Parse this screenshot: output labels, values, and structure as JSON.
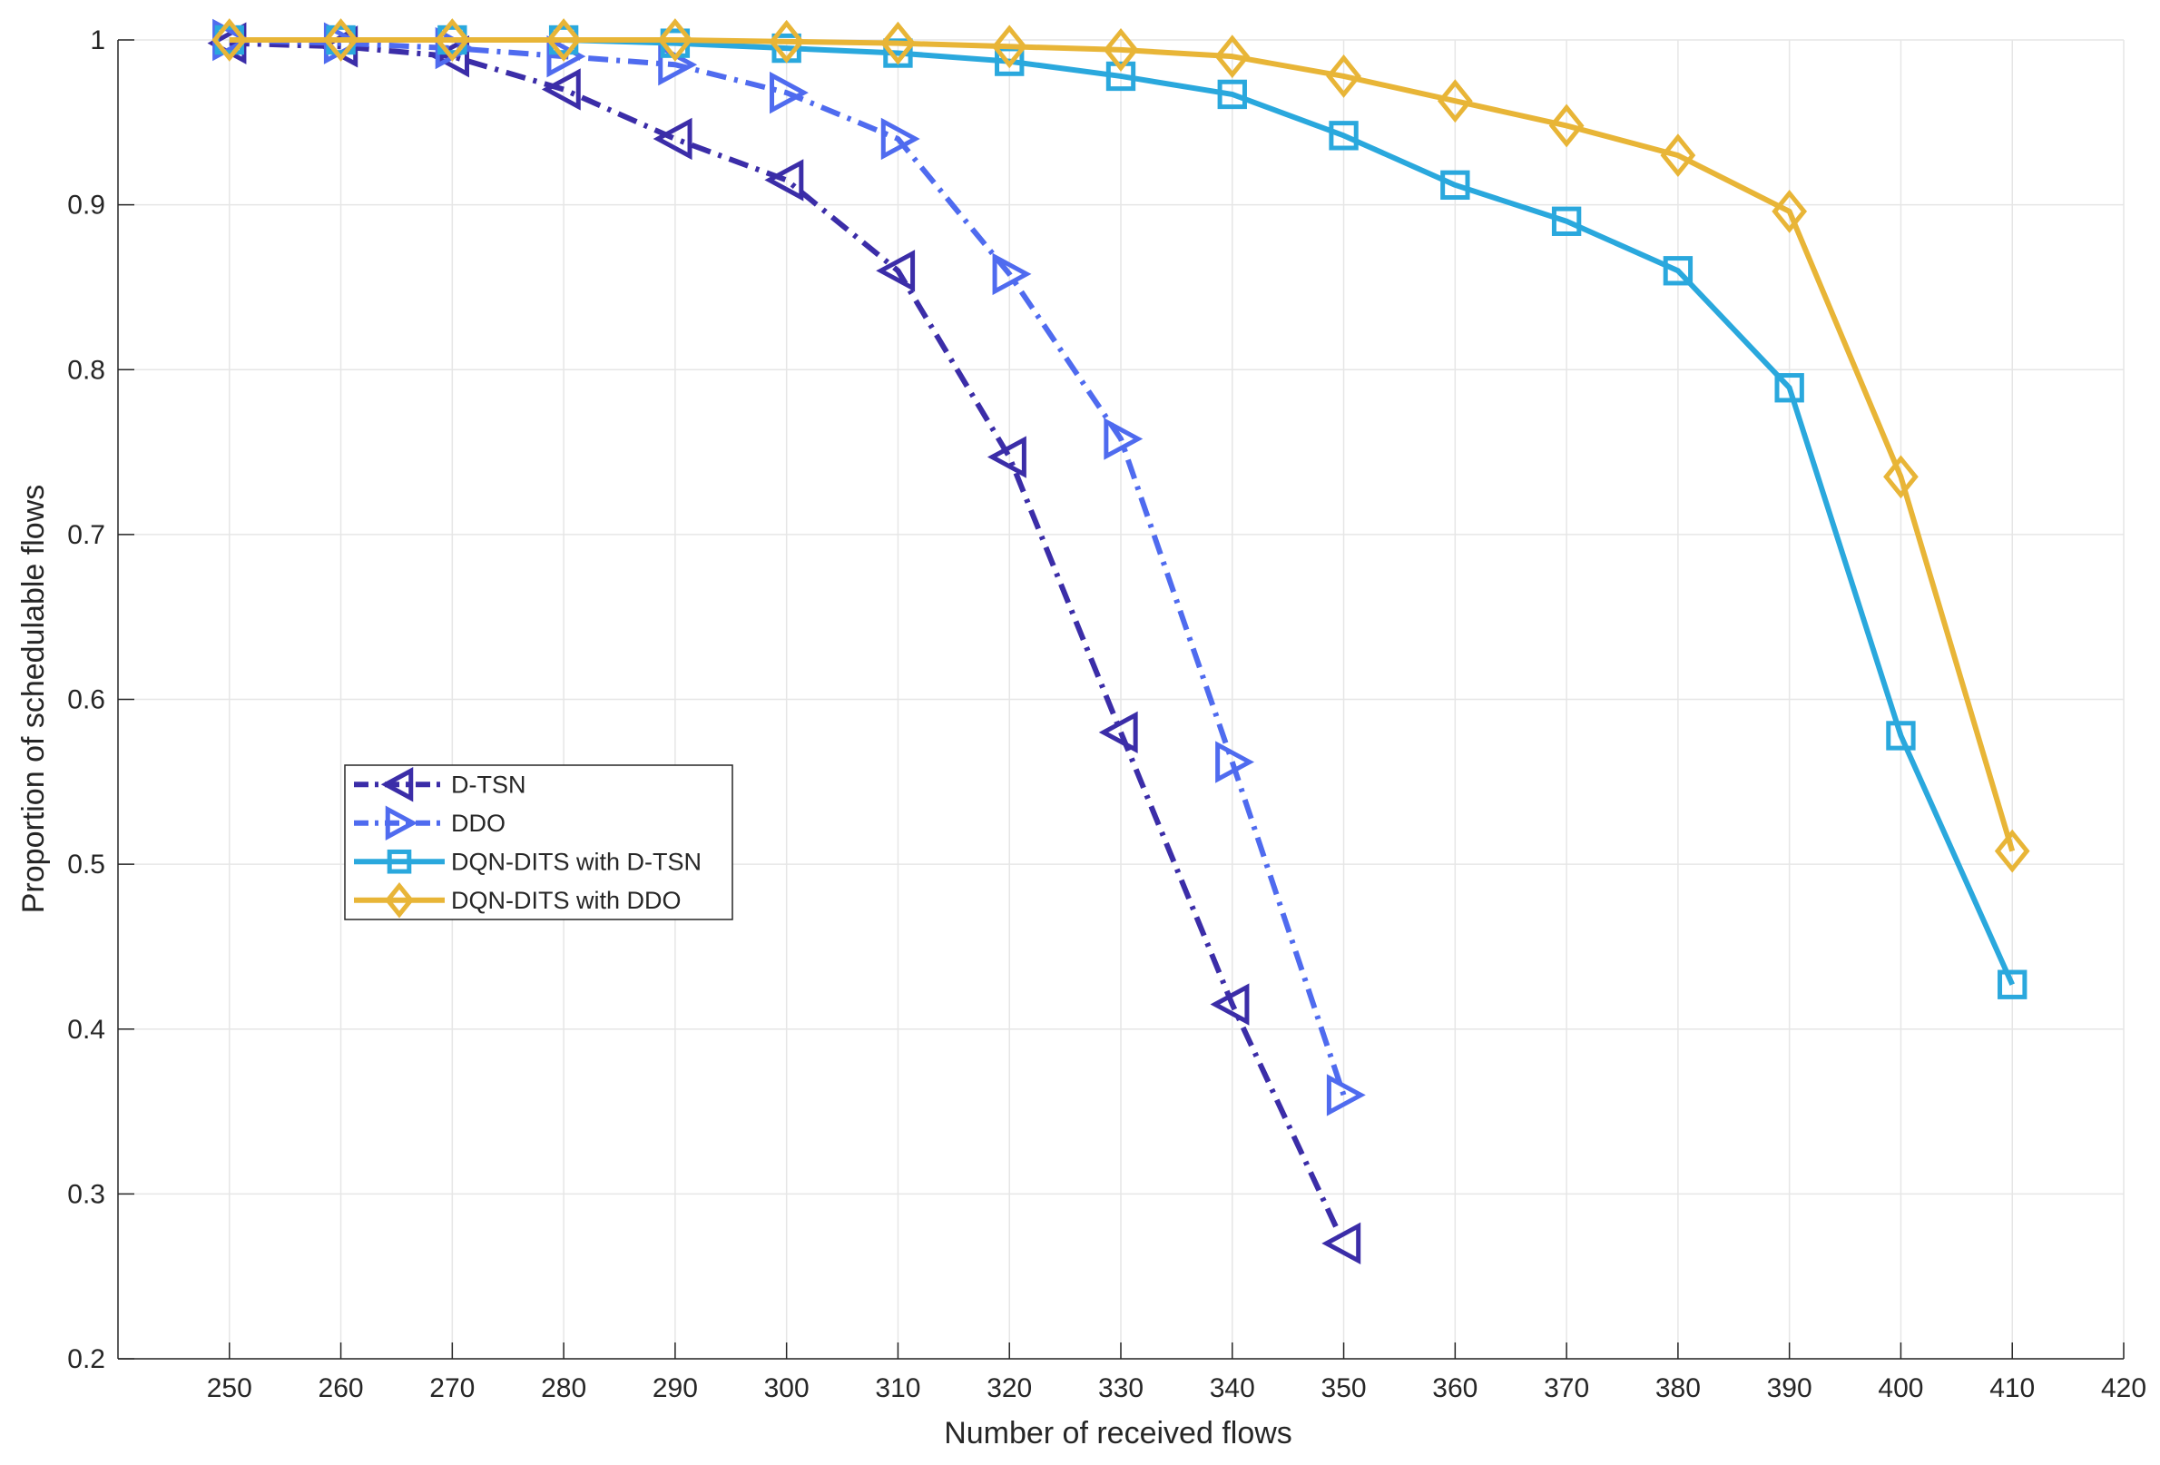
{
  "chart_data": {
    "type": "line",
    "title": "",
    "xlabel": "Number of received flows",
    "ylabel": "Proportion of schedulable flows",
    "xlim": [
      240,
      420
    ],
    "ylim": [
      0.2,
      1.0
    ],
    "xticks": [
      250,
      260,
      270,
      280,
      290,
      300,
      310,
      320,
      330,
      340,
      350,
      360,
      370,
      380,
      390,
      400,
      410,
      420
    ],
    "yticks": [
      0.2,
      0.3,
      0.4,
      0.5,
      0.6,
      0.7,
      0.8,
      0.9,
      1.0
    ],
    "ytick_labels": [
      "0.2",
      "0.3",
      "0.4",
      "0.5",
      "0.6",
      "0.7",
      "0.8",
      "0.9",
      "1"
    ],
    "grid": true,
    "legend_position": "middle-left",
    "series": [
      {
        "name": "D-TSN",
        "color": "#3b2da8",
        "line_style": "dash-dot",
        "marker": "triangle-left",
        "x": [
          250,
          260,
          270,
          280,
          290,
          300,
          310,
          320,
          330,
          340,
          350
        ],
        "values": [
          0.998,
          0.996,
          0.99,
          0.97,
          0.94,
          0.915,
          0.86,
          0.747,
          0.58,
          0.415,
          0.27
        ]
      },
      {
        "name": "DDO",
        "color": "#4f6bef",
        "line_style": "dash-dot",
        "marker": "triangle-right",
        "x": [
          250,
          260,
          270,
          280,
          290,
          300,
          310,
          320,
          330,
          340,
          350
        ],
        "values": [
          1.0,
          0.998,
          0.995,
          0.99,
          0.985,
          0.968,
          0.94,
          0.858,
          0.758,
          0.562,
          0.36
        ]
      },
      {
        "name": "DQN-DITS with D-TSN",
        "color": "#2aa8dd",
        "line_style": "solid",
        "marker": "square",
        "x": [
          250,
          260,
          270,
          280,
          290,
          300,
          310,
          320,
          330,
          340,
          350,
          360,
          370,
          380,
          390,
          400,
          410
        ],
        "values": [
          1.0,
          1.0,
          1.0,
          1.0,
          0.998,
          0.995,
          0.992,
          0.987,
          0.978,
          0.967,
          0.942,
          0.912,
          0.89,
          0.86,
          0.789,
          0.578,
          0.427
        ]
      },
      {
        "name": "DQN-DITS with DDO",
        "color": "#e8b537",
        "line_style": "solid",
        "marker": "diamond",
        "x": [
          250,
          260,
          270,
          280,
          290,
          300,
          310,
          320,
          330,
          340,
          350,
          360,
          370,
          380,
          390,
          400,
          410
        ],
        "values": [
          1.0,
          1.0,
          1.0,
          1.0,
          1.0,
          0.999,
          0.998,
          0.996,
          0.994,
          0.99,
          0.978,
          0.963,
          0.948,
          0.93,
          0.896,
          0.735,
          0.508
        ]
      }
    ]
  }
}
